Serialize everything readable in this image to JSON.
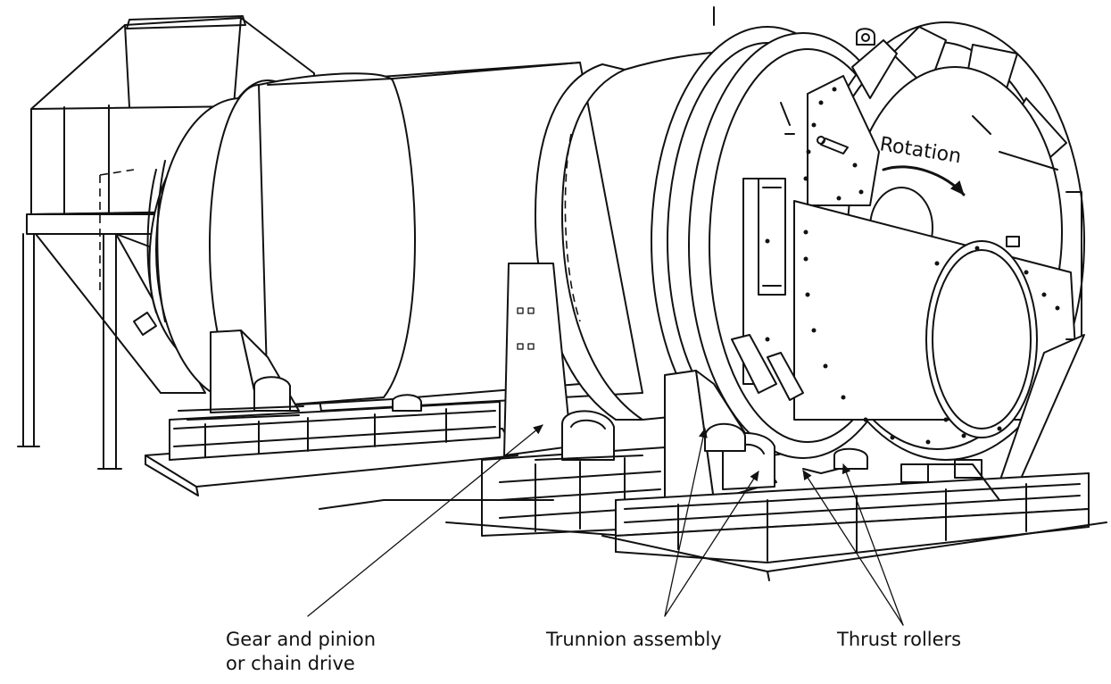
{
  "labels": {
    "rotation": "Rotation",
    "gear_line1": "Gear and pinion",
    "gear_line2": "or chain drive",
    "trunnion": "Trunnion assembly",
    "thrust": "Thrust rollers"
  },
  "colors": {
    "ink": "#111111",
    "paper": "#ffffff"
  }
}
